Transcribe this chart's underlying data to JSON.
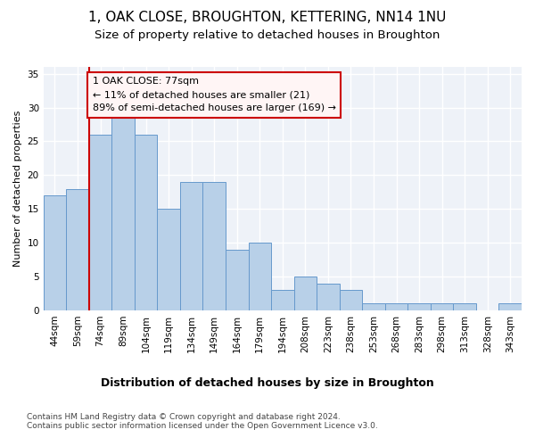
{
  "title1": "1, OAK CLOSE, BROUGHTON, KETTERING, NN14 1NU",
  "title2": "Size of property relative to detached houses in Broughton",
  "xlabel": "Distribution of detached houses by size in Broughton",
  "ylabel": "Number of detached properties",
  "categories": [
    "44sqm",
    "59sqm",
    "74sqm",
    "89sqm",
    "104sqm",
    "119sqm",
    "134sqm",
    "149sqm",
    "164sqm",
    "179sqm",
    "194sqm",
    "208sqm",
    "223sqm",
    "238sqm",
    "253sqm",
    "268sqm",
    "283sqm",
    "298sqm",
    "313sqm",
    "328sqm",
    "343sqm"
  ],
  "values": [
    17,
    18,
    26,
    29,
    26,
    15,
    19,
    19,
    9,
    10,
    3,
    5,
    4,
    3,
    1,
    1,
    1,
    1,
    1,
    0,
    1
  ],
  "bar_color": "#b8d0e8",
  "bar_edge_color": "#6699cc",
  "background_color": "#eef2f8",
  "grid_color": "#ffffff",
  "vline_color": "#cc0000",
  "vline_x_idx": 1.5,
  "annotation_text": "1 OAK CLOSE: 77sqm\n← 11% of detached houses are smaller (21)\n89% of semi-detached houses are larger (169) →",
  "annotation_box_facecolor": "#fff5f5",
  "annotation_box_edge": "#cc0000",
  "ylim": [
    0,
    36
  ],
  "yticks": [
    0,
    5,
    10,
    15,
    20,
    25,
    30,
    35
  ],
  "footnote": "Contains HM Land Registry data © Crown copyright and database right 2024.\nContains public sector information licensed under the Open Government Licence v3.0.",
  "title1_fontsize": 11,
  "title2_fontsize": 9.5,
  "xlabel_fontsize": 9,
  "ylabel_fontsize": 8,
  "tick_fontsize": 7.5,
  "annotation_fontsize": 8
}
